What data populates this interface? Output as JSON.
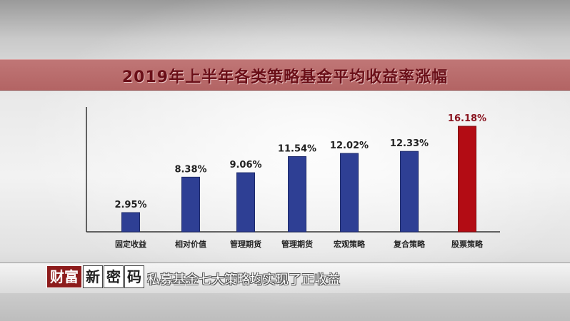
{
  "banner": {
    "title": "2019年上半年各类策略基金平均收益率涨幅"
  },
  "chart_data": {
    "type": "bar",
    "title": "2019年上半年各类策略基金平均收益率涨幅",
    "categories": [
      "固定收益",
      "相对价值",
      "管理期货",
      "管理期货",
      "宏观策略",
      "复合策略",
      "股票策略"
    ],
    "values": [
      2.95,
      8.38,
      9.06,
      11.54,
      12.02,
      12.33,
      16.18
    ],
    "data_labels": [
      "2.95%",
      "8.38%",
      "9.06%",
      "11.54%",
      "12.02%",
      "12.33%",
      "16.18%"
    ],
    "unit": "%",
    "grid": false,
    "legend": "none",
    "bar_color": "#2e3f94",
    "highlight_color": "#b30c14",
    "highlight_index": 6,
    "label_color": "#222222",
    "highlight_label_color": "#8a1520"
  },
  "ticker": {
    "logo": [
      "财富",
      "新",
      "密",
      "码"
    ],
    "caption": "私募基金七大策略均实现了正收益"
  }
}
